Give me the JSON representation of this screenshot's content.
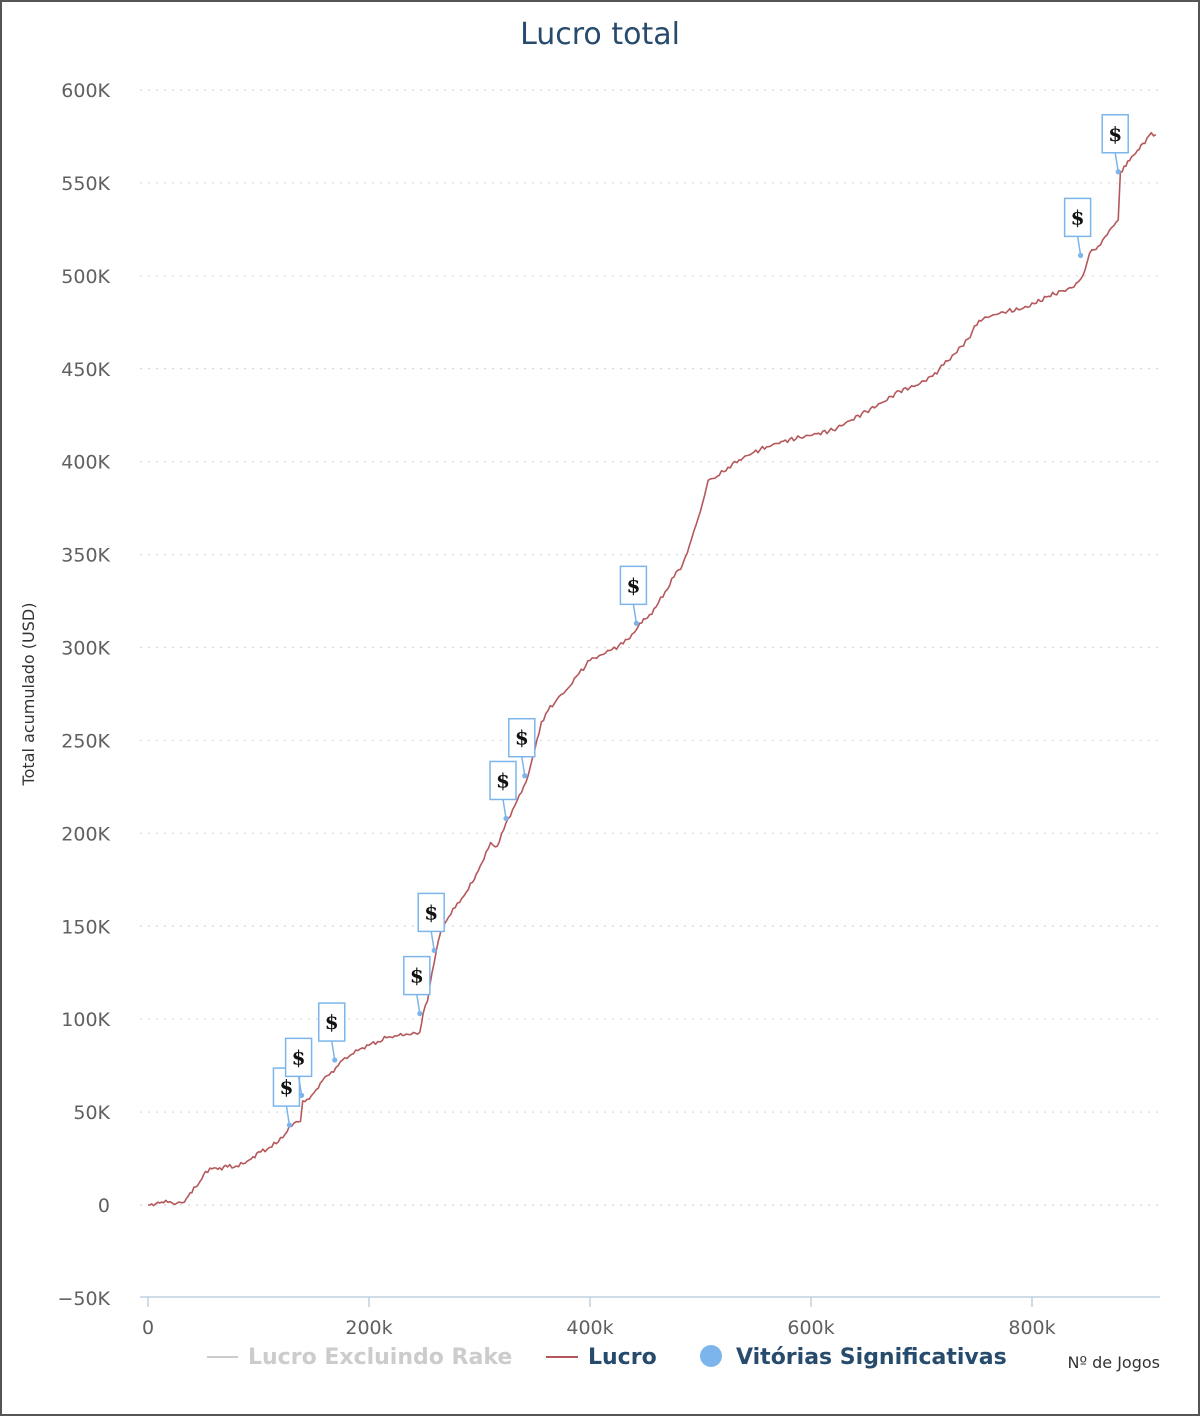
{
  "chart_data": {
    "type": "line",
    "title": "Lucro total",
    "ylabel": "Total acumulado (USD)",
    "xlabel": "Nº de Jogos",
    "xlim": [
      0,
      920000
    ],
    "ylim": [
      -50000,
      600000
    ],
    "y_ticks": [
      -50000,
      0,
      50000,
      100000,
      150000,
      200000,
      250000,
      300000,
      350000,
      400000,
      450000,
      500000,
      550000,
      600000
    ],
    "y_tick_labels": [
      "−50K",
      "0",
      "50K",
      "100K",
      "150K",
      "200K",
      "250K",
      "300K",
      "350K",
      "400K",
      "450K",
      "500K",
      "550K",
      "600K"
    ],
    "x_ticks": [
      0,
      200000,
      400000,
      600000,
      800000
    ],
    "x_tick_labels": [
      "0",
      "200k",
      "400k",
      "600k",
      "800k"
    ],
    "grid": true,
    "legend_position": "bottom",
    "series": [
      {
        "name": "Lucro Excluindo Rake",
        "color": "#cccccc",
        "hidden": true,
        "points": []
      },
      {
        "name": "Lucro",
        "color": "#b5585b",
        "points": [
          [
            0,
            0
          ],
          [
            5000,
            -300
          ],
          [
            9000,
            1500
          ],
          [
            14000,
            1200
          ],
          [
            20000,
            1800
          ],
          [
            26000,
            900
          ],
          [
            33000,
            1600
          ],
          [
            38000,
            6500
          ],
          [
            45000,
            10500
          ],
          [
            52000,
            18000
          ],
          [
            58000,
            19500
          ],
          [
            65000,
            20000
          ],
          [
            72000,
            20500
          ],
          [
            80000,
            21000
          ],
          [
            88000,
            22500
          ],
          [
            95000,
            26000
          ],
          [
            102000,
            28500
          ],
          [
            110000,
            31000
          ],
          [
            118000,
            34000
          ],
          [
            124000,
            38000
          ],
          [
            128000,
            42500
          ],
          [
            132000,
            44000
          ],
          [
            138000,
            45000
          ],
          [
            140000,
            56000
          ],
          [
            146000,
            57000
          ],
          [
            152000,
            62000
          ],
          [
            158000,
            67000
          ],
          [
            164000,
            70000
          ],
          [
            170000,
            74000
          ],
          [
            176000,
            78000
          ],
          [
            184000,
            81000
          ],
          [
            192000,
            84000
          ],
          [
            200000,
            86000
          ],
          [
            208000,
            88000
          ],
          [
            216000,
            90000
          ],
          [
            225000,
            91000
          ],
          [
            234000,
            92000
          ],
          [
            242000,
            92500
          ],
          [
            246000,
            93000
          ],
          [
            249000,
            103000
          ],
          [
            253000,
            110000
          ],
          [
            257000,
            125000
          ],
          [
            261000,
            137000
          ],
          [
            266000,
            150000
          ],
          [
            272000,
            155000
          ],
          [
            278000,
            160000
          ],
          [
            284000,
            165000
          ],
          [
            290000,
            170000
          ],
          [
            297000,
            178000
          ],
          [
            304000,
            186000
          ],
          [
            310000,
            195000
          ],
          [
            316000,
            193000
          ],
          [
            322000,
            202000
          ],
          [
            326000,
            208000
          ],
          [
            332000,
            215000
          ],
          [
            338000,
            222000
          ],
          [
            344000,
            231000
          ],
          [
            350000,
            245000
          ],
          [
            356000,
            260000
          ],
          [
            362000,
            266000
          ],
          [
            370000,
            272000
          ],
          [
            380000,
            278000
          ],
          [
            390000,
            286000
          ],
          [
            400000,
            293000
          ],
          [
            410000,
            296000
          ],
          [
            420000,
            299000
          ],
          [
            430000,
            302000
          ],
          [
            440000,
            308000
          ],
          [
            445000,
            313000
          ],
          [
            452000,
            316000
          ],
          [
            460000,
            322000
          ],
          [
            468000,
            330000
          ],
          [
            476000,
            338000
          ],
          [
            484000,
            345000
          ],
          [
            490000,
            355000
          ],
          [
            496000,
            366000
          ],
          [
            502000,
            378000
          ],
          [
            507000,
            390000
          ],
          [
            515000,
            392000
          ],
          [
            525000,
            397000
          ],
          [
            535000,
            401000
          ],
          [
            548000,
            405000
          ],
          [
            560000,
            408000
          ],
          [
            575000,
            411000
          ],
          [
            590000,
            413000
          ],
          [
            605000,
            415000
          ],
          [
            620000,
            417000
          ],
          [
            635000,
            422000
          ],
          [
            650000,
            427000
          ],
          [
            665000,
            432000
          ],
          [
            680000,
            438000
          ],
          [
            695000,
            441000
          ],
          [
            710000,
            446000
          ],
          [
            720000,
            452000
          ],
          [
            730000,
            458000
          ],
          [
            742000,
            466000
          ],
          [
            752000,
            476000
          ],
          [
            765000,
            479000
          ],
          [
            778000,
            481000
          ],
          [
            790000,
            482000
          ],
          [
            802000,
            485000
          ],
          [
            815000,
            489000
          ],
          [
            828000,
            492000
          ],
          [
            838000,
            494000
          ],
          [
            846000,
            500000
          ],
          [
            852000,
            512000
          ],
          [
            860000,
            516000
          ],
          [
            868000,
            522000
          ],
          [
            874000,
            527000
          ],
          [
            878000,
            530000
          ],
          [
            880000,
            556000
          ],
          [
            885000,
            559000
          ],
          [
            890000,
            564000
          ],
          [
            897000,
            568000
          ],
          [
            904000,
            574000
          ],
          [
            908000,
            577000
          ],
          [
            912000,
            576000
          ]
        ]
      }
    ],
    "markers": {
      "name": "Vitórias Significativas",
      "color": "#7cb5ec",
      "symbol": "$",
      "points": [
        [
          128000,
          43000
        ],
        [
          139000,
          59000
        ],
        [
          169000,
          78000
        ],
        [
          246000,
          103000
        ],
        [
          259000,
          137000
        ],
        [
          324000,
          208000
        ],
        [
          341000,
          231000
        ],
        [
          442000,
          313000
        ],
        [
          844000,
          511000
        ],
        [
          878000,
          556000
        ]
      ]
    }
  }
}
